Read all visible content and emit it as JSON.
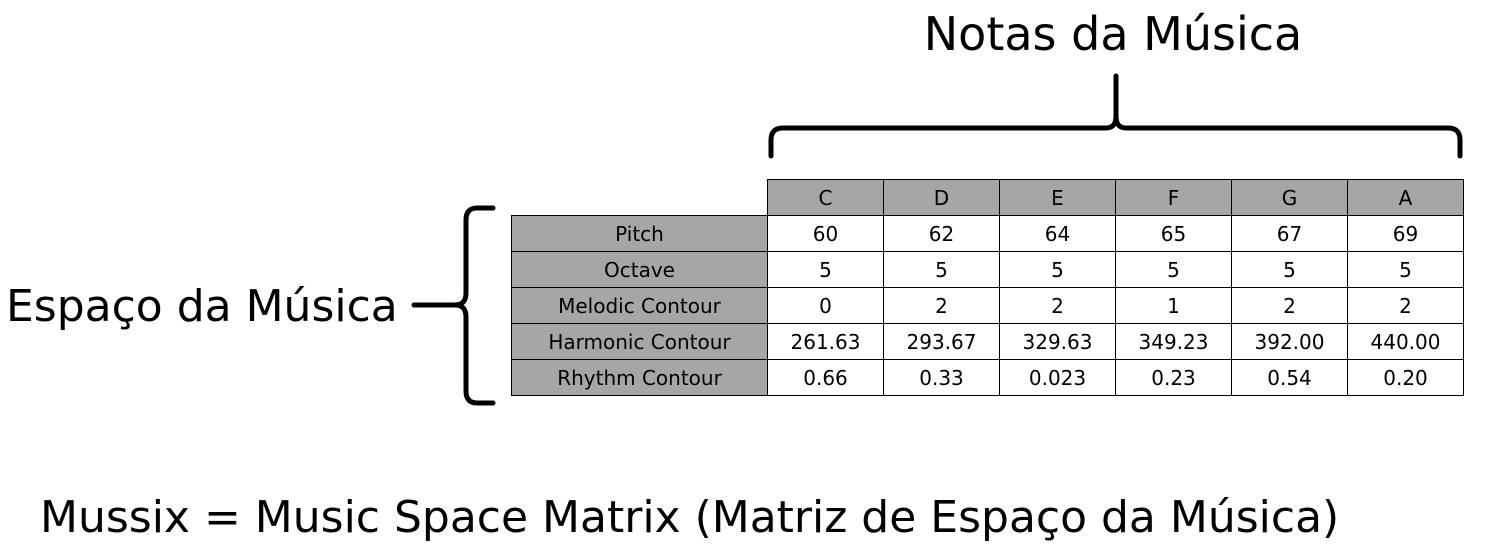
{
  "labels": {
    "notes_title": "Notas da Música",
    "space_title": "Espaço da Música",
    "caption": "Mussix = Music Space Matrix (Matriz de Espaço da Música)"
  },
  "table": {
    "notes": [
      "C",
      "D",
      "E",
      "F",
      "G",
      "A"
    ],
    "rows": [
      {
        "label": "Pitch",
        "values": [
          "60",
          "62",
          "64",
          "65",
          "67",
          "69"
        ]
      },
      {
        "label": "Octave",
        "values": [
          "5",
          "5",
          "5",
          "5",
          "5",
          "5"
        ]
      },
      {
        "label": "Melodic Contour",
        "values": [
          "0",
          "2",
          "2",
          "1",
          "2",
          "2"
        ]
      },
      {
        "label": "Harmonic Contour",
        "values": [
          "261.63",
          "293.67",
          "329.63",
          "349.23",
          "392.00",
          "440.00"
        ]
      },
      {
        "label": "Rhythm Contour",
        "values": [
          "0.66",
          "0.33",
          "0.023",
          "0.23",
          "0.54",
          "0.20"
        ]
      }
    ]
  },
  "colors": {
    "header_fill": "#a6a6a6",
    "border": "#000000",
    "background": "#ffffff"
  }
}
